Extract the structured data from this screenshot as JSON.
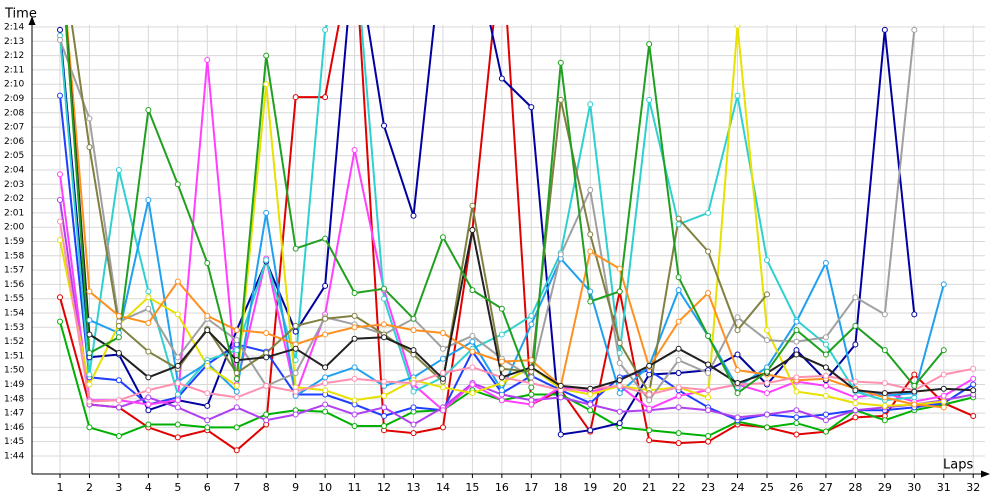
{
  "chart_data": {
    "type": "line",
    "x_label": "Laps",
    "y_label": "Time",
    "x": [
      1,
      2,
      3,
      4,
      5,
      6,
      7,
      8,
      9,
      10,
      11,
      12,
      13,
      14,
      15,
      16,
      17,
      18,
      19,
      20,
      21,
      22,
      23,
      24,
      25,
      26,
      27,
      28,
      29,
      30,
      31,
      32
    ],
    "xlim": [
      0.05,
      32.4
    ],
    "xticks": [
      1,
      2,
      3,
      4,
      5,
      6,
      7,
      8,
      9,
      10,
      11,
      12,
      13,
      14,
      15,
      16,
      17,
      18,
      19,
      20,
      21,
      22,
      23,
      24,
      25,
      26,
      27,
      28,
      29,
      30,
      31,
      32
    ],
    "ylim": [
      102.74,
      134.14
    ],
    "yticks": [
      {
        "value": 104,
        "label": "1:44"
      },
      {
        "value": 105,
        "label": "1:45"
      },
      {
        "value": 106,
        "label": "1:46"
      },
      {
        "value": 107,
        "label": "1:47"
      },
      {
        "value": 108,
        "label": "1:48"
      },
      {
        "value": 109,
        "label": "1:49"
      },
      {
        "value": 110,
        "label": "1:50"
      },
      {
        "value": 111,
        "label": "1:51"
      },
      {
        "value": 112,
        "label": "1:52"
      },
      {
        "value": 113,
        "label": "1:53"
      },
      {
        "value": 114,
        "label": "1:54"
      },
      {
        "value": 115,
        "label": "1:55"
      },
      {
        "value": 116,
        "label": "1:56"
      },
      {
        "value": 117,
        "label": "1:57"
      },
      {
        "value": 118,
        "label": "1:58"
      },
      {
        "value": 119,
        "label": "1:59"
      },
      {
        "value": 120,
        "label": "2:00"
      },
      {
        "value": 121,
        "label": "2:01"
      },
      {
        "value": 122,
        "label": "2:02"
      },
      {
        "value": 123,
        "label": "2:03"
      },
      {
        "value": 124,
        "label": "2:04"
      },
      {
        "value": 125,
        "label": "2:05"
      },
      {
        "value": 126,
        "label": "2:06"
      },
      {
        "value": 127,
        "label": "2:07"
      },
      {
        "value": 128,
        "label": "2:08"
      },
      {
        "value": 129,
        "label": "2:09"
      },
      {
        "value": 130,
        "label": "2:10"
      },
      {
        "value": 131,
        "label": "2:11"
      },
      {
        "value": 132,
        "label": "2:12"
      },
      {
        "value": 133,
        "label": "2:13"
      },
      {
        "value": 134,
        "label": "2:14"
      }
    ],
    "grid": true,
    "series": [
      {
        "color": "#e00000",
        "values": [
          115.1,
          107.6,
          107.4,
          106,
          105.3,
          105.8,
          104.4,
          106.2,
          129.1,
          129.1,
          140,
          105.8,
          105.6,
          106,
          119.8,
          140,
          107.6,
          108.6,
          105.7,
          115.5,
          105.1,
          104.9,
          105,
          106.2,
          106,
          105.5,
          105.7,
          106.7,
          106.8,
          109.7,
          107.7,
          106.8
        ]
      },
      {
        "color": "#00b000",
        "values": [
          113.4,
          106,
          105.4,
          106.2,
          106.2,
          106,
          106,
          106.9,
          107.2,
          107.1,
          106.1,
          106.1,
          107.1,
          107.2,
          108.6,
          107.9,
          108.3,
          108.3,
          107.2,
          106,
          105.8,
          105.6,
          105.4,
          106.4,
          106,
          106.3,
          105.7,
          107.2,
          106.5,
          107.2,
          107.6,
          108.1
        ]
      },
      {
        "color": "#0000a0",
        "values": [
          133.8,
          110.9,
          111.1,
          107.2,
          107.9,
          107.5,
          112.8,
          117.6,
          112.7,
          115.9,
          140,
          127.1,
          120.8,
          140,
          140,
          130.4,
          128.4,
          105.5,
          105.8,
          106.3,
          109.7,
          109.8,
          110,
          111.1,
          109,
          111.4,
          109.3,
          111.8,
          133.8,
          113.9,
          null,
          null
        ]
      },
      {
        "color": "#1f3fff",
        "values": [
          129.2,
          109.5,
          109.3,
          107.6,
          108.1,
          110.4,
          111.8,
          111.3,
          108.3,
          108.3,
          107.6,
          106.8,
          107.4,
          107.2,
          111.3,
          108.4,
          109.6,
          108.6,
          107.7,
          109.5,
          110,
          108.6,
          107.4,
          106.5,
          106.9,
          106.7,
          106.9,
          107.2,
          107.2,
          107.4,
          107.7,
          109
        ]
      },
      {
        "color": "#b040f0",
        "values": [
          121.9,
          107.6,
          107.4,
          108.1,
          107.4,
          106.5,
          107.4,
          106.5,
          106.9,
          107.6,
          106.9,
          107.4,
          106.2,
          107.4,
          109.1,
          108.3,
          107.9,
          108.1,
          107.6,
          107.1,
          107.2,
          107.4,
          107.2,
          106.7,
          106.9,
          107.2,
          106.5,
          107.2,
          107.4,
          107.6,
          107.9,
          108.3
        ]
      },
      {
        "color": "#ff40ff",
        "values": [
          123.7,
          107.9,
          107.9,
          107.6,
          107.9,
          131.7,
          109,
          117.8,
          108.3,
          113.9,
          125.4,
          115.6,
          109,
          107.2,
          109,
          107.9,
          107.6,
          108.8,
          108.5,
          108.9,
          107.3,
          108.2,
          108.6,
          109,
          108.4,
          109.2,
          108.9,
          108.1,
          108.4,
          107.8,
          108.2,
          109.4
        ]
      },
      {
        "color": "#30d0d0",
        "values": [
          133.4,
          109.7,
          124,
          115.5,
          108.3,
          110.7,
          111.4,
          117.7,
          110.7,
          133.8,
          140,
          115,
          108.5,
          109.5,
          111.5,
          112.5,
          113.8,
          118.2,
          128.6,
          111.2,
          128.9,
          120.2,
          121,
          129.2,
          117.7,
          113.5,
          111.8,
          108.5,
          107.9,
          108.1,
          null,
          null
        ]
      },
      {
        "color": "#20a0f0",
        "values": [
          null,
          113.5,
          112.6,
          121.9,
          109.2,
          110.5,
          108.5,
          121,
          108.2,
          109.5,
          110.2,
          108.9,
          109.5,
          110.8,
          112,
          108.6,
          113.2,
          117.8,
          115.5,
          108.4,
          110.3,
          115.6,
          112.4,
          108.8,
          110.2,
          113.4,
          117.5,
          108.6,
          108.2,
          108.4,
          116,
          null
        ]
      },
      {
        "color": "#e8e000",
        "values": [
          119.1,
          109,
          113.2,
          115.1,
          113.9,
          110.3,
          108.9,
          130,
          108.8,
          108.6,
          107.9,
          108.2,
          109.3,
          108.8,
          108.4,
          109.1,
          110.2,
          108.7,
          108.3,
          108.9,
          108.6,
          108.8,
          108.1,
          134.1,
          112.8,
          108.5,
          108.2,
          107.7,
          107.5,
          107.6,
          107.8,
          null
        ]
      },
      {
        "color": "#a0a0a0",
        "values": [
          133.1,
          127.6,
          113.4,
          114.3,
          110.9,
          113.6,
          112.1,
          108.9,
          109.8,
          113.7,
          113.2,
          112.5,
          113.6,
          111.5,
          112.4,
          110.8,
          109.5,
          118.1,
          122.6,
          110.5,
          107.9,
          110.7,
          109.8,
          113.7,
          112.1,
          112,
          112.3,
          115.1,
          113.9,
          133.8,
          null,
          null
        ]
      },
      {
        "color": "#808040",
        "values": [
          140,
          125.6,
          113.1,
          111.3,
          110.1,
          112.9,
          109.8,
          111.2,
          113.1,
          113.6,
          113.8,
          112.5,
          111.1,
          109.2,
          121.5,
          110.1,
          109.9,
          128.9,
          119.5,
          111.9,
          108.4,
          120.6,
          118.3,
          112.8,
          115.3,
          null,
          null,
          null,
          null,
          null,
          null,
          null
        ]
      },
      {
        "color": "#ff9020",
        "values": [
          140,
          115.5,
          113.8,
          113.3,
          116.2,
          113.8,
          112.8,
          112.6,
          111.8,
          112.5,
          113,
          113.2,
          112.8,
          112.6,
          111.3,
          110.6,
          110.7,
          108.9,
          118.3,
          117.1,
          110.2,
          113.4,
          115.4,
          110,
          109.7,
          109.3,
          109.4,
          108.7,
          108.1,
          107.6,
          107.4,
          null
        ]
      },
      {
        "color": "#ff90b0",
        "values": [
          120.4,
          107.8,
          107.9,
          108.6,
          109.1,
          108.4,
          108.1,
          108.9,
          108.5,
          109.1,
          109.4,
          109.2,
          109.1,
          109.8,
          110.2,
          109.5,
          109.1,
          108.6,
          108.7,
          108.9,
          108.3,
          108.8,
          108.6,
          109,
          109.1,
          109.5,
          109.6,
          109.2,
          109.1,
          108.6,
          109.7,
          110.1
        ]
      },
      {
        "color": "#202020",
        "values": [
          140,
          112.5,
          111.2,
          109.5,
          110.3,
          112.8,
          110.7,
          110.9,
          111.5,
          110.2,
          112.2,
          112.3,
          111.4,
          109.4,
          119.8,
          109.5,
          110.2,
          108.9,
          108.7,
          109.3,
          110.3,
          111.5,
          110.4,
          109.1,
          109.8,
          111.1,
          110.2,
          108.6,
          108.4,
          108.5,
          108.7,
          108.6
        ]
      },
      {
        "color": "#20a020",
        "values": [
          140,
          111.2,
          112.3,
          128.2,
          123,
          117.5,
          109.4,
          132,
          118.5,
          119.2,
          115.4,
          115.7,
          113.6,
          119.3,
          115.6,
          114.3,
          108.8,
          131.5,
          114.8,
          115.5,
          132.8,
          116.5,
          112.4,
          108.4,
          109.9,
          112.8,
          111.1,
          113.1,
          111.4,
          108.9,
          111.4,
          null
        ]
      }
    ]
  }
}
